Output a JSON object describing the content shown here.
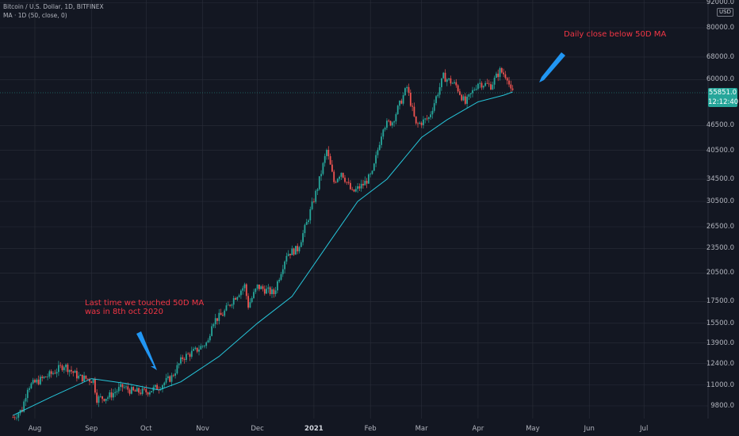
{
  "header": {
    "symbol": "Bitcoin / U.S. Dollar, 1D, BITFINEX",
    "indicator": "MA · 1D (50, close, 0)"
  },
  "price_badge": {
    "price": "55851.0",
    "countdown": "12:12:40"
  },
  "currency": "USD",
  "colors": {
    "background": "#131722",
    "up": "#26a69a",
    "down": "#ef5350",
    "ma": "#26c6da",
    "annotation": "#f23645",
    "arrow": "#2196f3"
  },
  "annotations": {
    "ma_touch": [
      "Last time we touched 50D MA",
      "was in 8th oct 2020"
    ],
    "close_below": "Daily close below 50D MA"
  },
  "chart_data": {
    "type": "candlestick",
    "yscale": "log",
    "y_ticks": [
      92000,
      80000,
      68000,
      60000,
      46500,
      40500,
      34500,
      30500,
      26500,
      23500,
      20500,
      17500,
      15500,
      13900,
      12400,
      11000,
      9800
    ],
    "y_tick_labels": [
      "92000.0",
      "80000.0",
      "68000.0",
      "60000.0",
      "46500.0",
      "40500.0",
      "34500.0",
      "30500.0",
      "26500.0",
      "23500.0",
      "20500.0",
      "17500.0",
      "15500.0",
      "13900.0",
      "12400.0",
      "11000.0",
      "9800.0"
    ],
    "x_ticks": [
      "Aug",
      "Sep",
      "Oct",
      "Nov",
      "Dec",
      "2021",
      "Feb",
      "Mar",
      "Apr",
      "May",
      "Jun",
      "Jul"
    ],
    "x_tick_dates": [
      "2020-08-01",
      "2020-09-01",
      "2020-10-01",
      "2020-11-01",
      "2020-12-01",
      "2021-01-01",
      "2021-02-01",
      "2021-03-01",
      "2021-04-01",
      "2021-05-01",
      "2021-06-01",
      "2021-07-01"
    ],
    "close_series": [
      [
        "2020-07-20",
        9200
      ],
      [
        "2020-07-25",
        9600
      ],
      [
        "2020-07-28",
        10900
      ],
      [
        "2020-08-02",
        11200
      ],
      [
        "2020-08-10",
        11700
      ],
      [
        "2020-08-17",
        12300
      ],
      [
        "2020-08-25",
        11500
      ],
      [
        "2020-09-02",
        11300
      ],
      [
        "2020-09-04",
        10200
      ],
      [
        "2020-09-10",
        10300
      ],
      [
        "2020-09-18",
        10900
      ],
      [
        "2020-09-24",
        10600
      ],
      [
        "2020-10-01",
        10600
      ],
      [
        "2020-10-08",
        10900
      ],
      [
        "2020-10-15",
        11500
      ],
      [
        "2020-10-21",
        12800
      ],
      [
        "2020-10-28",
        13300
      ],
      [
        "2020-11-04",
        14000
      ],
      [
        "2020-11-06",
        15600
      ],
      [
        "2020-11-12",
        16300
      ],
      [
        "2020-11-18",
        17800
      ],
      [
        "2020-11-24",
        19100
      ],
      [
        "2020-11-26",
        17100
      ],
      [
        "2020-12-01",
        19000
      ],
      [
        "2020-12-10",
        18300
      ],
      [
        "2020-12-17",
        22800
      ],
      [
        "2020-12-23",
        23400
      ],
      [
        "2020-12-28",
        27000
      ],
      [
        "2021-01-03",
        33000
      ],
      [
        "2021-01-08",
        40500
      ],
      [
        "2021-01-12",
        34000
      ],
      [
        "2021-01-16",
        36000
      ],
      [
        "2021-01-22",
        32000
      ],
      [
        "2021-01-28",
        33500
      ],
      [
        "2021-02-02",
        35500
      ],
      [
        "2021-02-08",
        46500
      ],
      [
        "2021-02-13",
        47500
      ],
      [
        "2021-02-21",
        57500
      ],
      [
        "2021-02-26",
        46500
      ],
      [
        "2021-03-05",
        48500
      ],
      [
        "2021-03-13",
        61000
      ],
      [
        "2021-03-20",
        58000
      ],
      [
        "2021-03-25",
        52500
      ],
      [
        "2021-04-01",
        59000
      ],
      [
        "2021-04-08",
        58000
      ],
      [
        "2021-04-13",
        63000
      ],
      [
        "2021-04-17",
        61000
      ],
      [
        "2021-04-19",
        56000
      ],
      [
        "2021-04-20",
        55851
      ]
    ],
    "ma_series": [
      [
        "2020-07-20",
        9300
      ],
      [
        "2020-08-10",
        10300
      ],
      [
        "2020-09-01",
        11400
      ],
      [
        "2020-09-20",
        11100
      ],
      [
        "2020-10-08",
        10700
      ],
      [
        "2020-10-20",
        11200
      ],
      [
        "2020-11-10",
        12900
      ],
      [
        "2020-12-01",
        15500
      ],
      [
        "2020-12-20",
        18000
      ],
      [
        "2021-01-10",
        24500
      ],
      [
        "2021-01-25",
        30500
      ],
      [
        "2021-02-10",
        34500
      ],
      [
        "2021-03-01",
        43500
      ],
      [
        "2021-03-15",
        48000
      ],
      [
        "2021-04-01",
        53000
      ],
      [
        "2021-04-15",
        55000
      ],
      [
        "2021-04-20",
        56000
      ]
    ]
  }
}
